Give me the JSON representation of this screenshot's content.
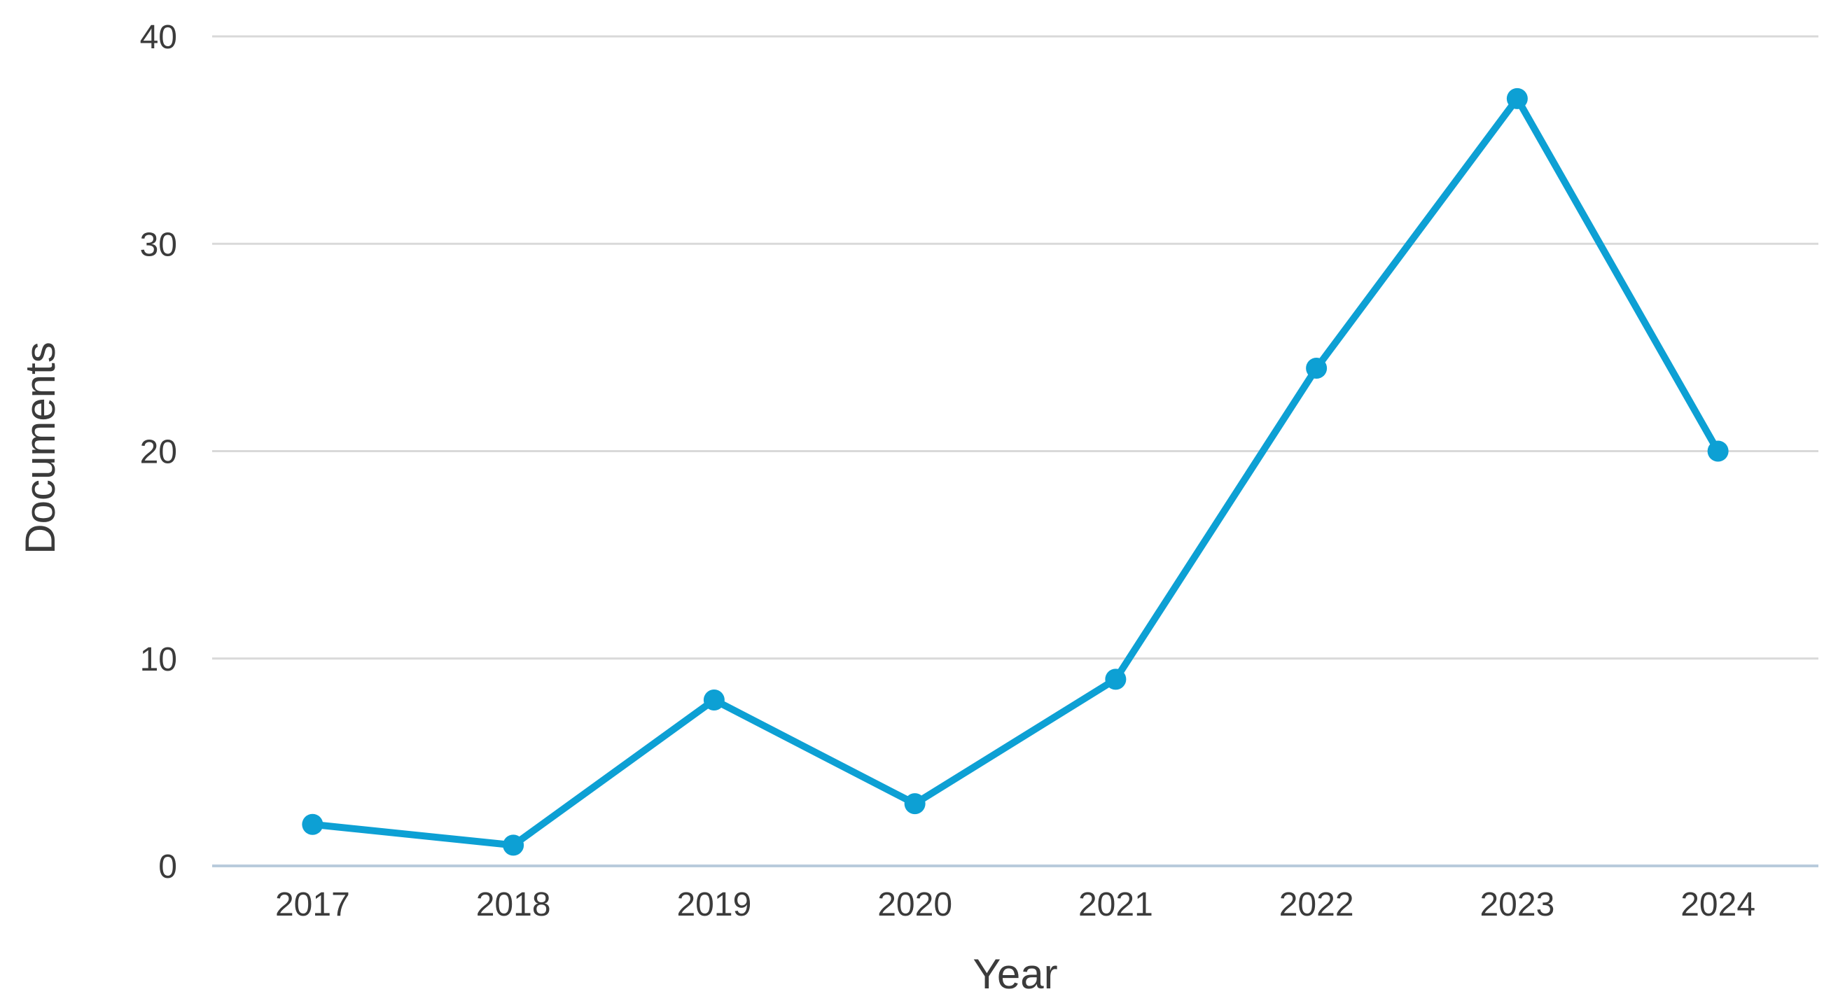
{
  "chart_data": {
    "type": "line",
    "title": "",
    "categories": [
      "2017",
      "2018",
      "2019",
      "2020",
      "2021",
      "2022",
      "2023",
      "2024"
    ],
    "series": [
      {
        "name": "Documents",
        "values": [
          2,
          1,
          8,
          3,
          9,
          24,
          37,
          20
        ]
      }
    ],
    "xlabel": "Year",
    "ylabel": "Documents",
    "ylim": [
      0,
      40
    ],
    "yticks": [
      0,
      10,
      20,
      30,
      40
    ],
    "grid": "horizontal",
    "legend": "none",
    "marker": "circle",
    "colors": {
      "line": "#0da0d4",
      "marker": "#0da0d4",
      "gridline": "#d9d9d9",
      "axis_line": "#b9cbdc",
      "text": "#3b3b3b"
    }
  }
}
